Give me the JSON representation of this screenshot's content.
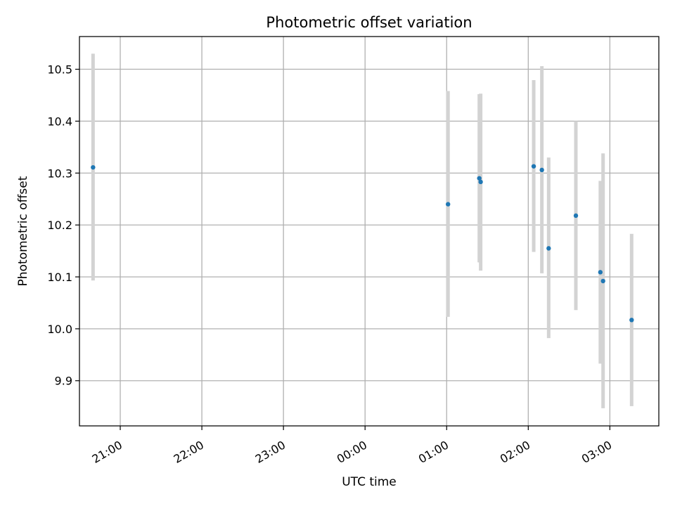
{
  "chart_data": {
    "type": "scatter",
    "title": "Photometric offset variation",
    "xlabel": "UTC time",
    "ylabel": "Photometric offset",
    "x_range": [
      "20:30",
      "03:36"
    ],
    "x_ticks": [
      "21:00",
      "22:00",
      "23:00",
      "00:00",
      "01:00",
      "02:00",
      "03:00"
    ],
    "ylim": [
      9.813,
      10.563
    ],
    "y_ticks": [
      "9.9",
      "10.0",
      "10.1",
      "10.2",
      "10.3",
      "10.4",
      "10.5"
    ],
    "grid": true,
    "colors": {
      "point": "#1f77b4",
      "errorbar": "#d3d3d3",
      "grid": "#b0b0b0"
    },
    "series": [
      {
        "points": [
          {
            "x": "20:40",
            "y": 10.311,
            "ylow": 10.093,
            "yhigh": 10.53
          },
          {
            "x": "01:01",
            "y": 10.24,
            "ylow": 10.023,
            "yhigh": 10.458
          },
          {
            "x": "01:24",
            "y": 10.29,
            "ylow": 10.128,
            "yhigh": 10.452
          },
          {
            "x": "01:25",
            "y": 10.283,
            "ylow": 10.112,
            "yhigh": 10.453
          },
          {
            "x": "02:04",
            "y": 10.313,
            "ylow": 10.148,
            "yhigh": 10.479
          },
          {
            "x": "02:10",
            "y": 10.306,
            "ylow": 10.107,
            "yhigh": 10.506
          },
          {
            "x": "02:15",
            "y": 10.155,
            "ylow": 9.982,
            "yhigh": 10.33
          },
          {
            "x": "02:35",
            "y": 10.218,
            "ylow": 10.036,
            "yhigh": 10.4
          },
          {
            "x": "02:53",
            "y": 10.109,
            "ylow": 9.933,
            "yhigh": 10.285
          },
          {
            "x": "02:55",
            "y": 10.092,
            "ylow": 9.847,
            "yhigh": 10.338
          },
          {
            "x": "03:16",
            "y": 10.017,
            "ylow": 9.851,
            "yhigh": 10.183
          }
        ]
      }
    ]
  }
}
